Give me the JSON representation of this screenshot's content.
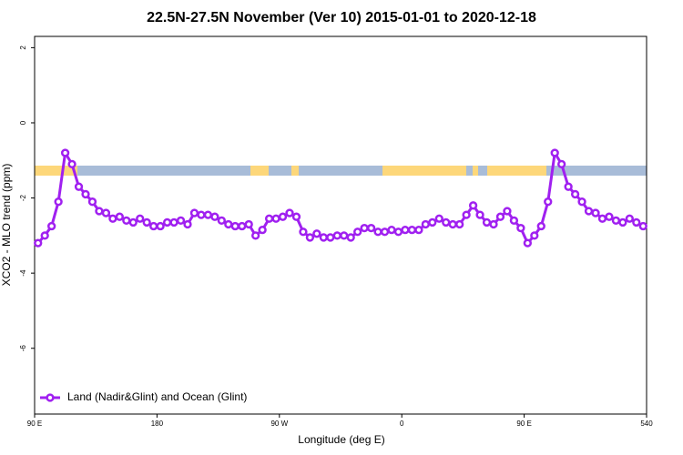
{
  "chart_data": {
    "type": "line",
    "title": "22.5N-27.5N November (Ver 10)   2015-01-01 to 2020-12-18",
    "xlabel": "Longitude (deg E)",
    "ylabel": "XCO2 - MLO trend (ppm)",
    "x": [
      92.5,
      97.5,
      102.5,
      107.5,
      112.5,
      117.5,
      122.5,
      127.5,
      132.5,
      137.5,
      142.5,
      147.5,
      152.5,
      157.5,
      162.5,
      167.5,
      172.5,
      177.5,
      182.5,
      187.5,
      192.5,
      197.5,
      202.5,
      207.5,
      212.5,
      217.5,
      222.5,
      227.5,
      232.5,
      237.5,
      242.5,
      247.5,
      252.5,
      257.5,
      262.5,
      267.5,
      272.5,
      277.5,
      282.5,
      287.5,
      292.5,
      297.5,
      302.5,
      307.5,
      312.5,
      317.5,
      322.5,
      327.5,
      332.5,
      337.5,
      342.5,
      347.5,
      352.5,
      357.5,
      362.5,
      367.5,
      372.5,
      377.5,
      382.5,
      387.5,
      392.5,
      397.5,
      402.5,
      407.5,
      412.5,
      417.5,
      422.5,
      427.5,
      432.5,
      437.5,
      442.5,
      447.5,
      452.5,
      457.5,
      462.5,
      467.5,
      472.5,
      477.5,
      482.5,
      487.5,
      492.5,
      497.5,
      502.5,
      507.5,
      512.5,
      517.5,
      522.5,
      527.5,
      532.5,
      537.5
    ],
    "series": [
      {
        "name": "Land (Nadir&Glint) and Ocean (Glint)",
        "color": "#a020f0",
        "values": [
          -3.2,
          -3.0,
          -2.75,
          -2.1,
          -0.8,
          -1.1,
          -1.7,
          -1.9,
          -2.1,
          -2.35,
          -2.4,
          -2.55,
          -2.5,
          -2.6,
          -2.65,
          -2.55,
          -2.65,
          -2.75,
          -2.75,
          -2.65,
          -2.65,
          -2.6,
          -2.7,
          -2.4,
          -2.45,
          -2.45,
          -2.5,
          -2.6,
          -2.7,
          -2.75,
          -2.75,
          -2.7,
          -3.0,
          -2.85,
          -2.55,
          -2.55,
          -2.5,
          -2.4,
          -2.5,
          -2.9,
          -3.05,
          -2.95,
          -3.05,
          -3.05,
          -3.0,
          -3.0,
          -3.05,
          -2.9,
          -2.8,
          -2.8,
          -2.9,
          -2.9,
          -2.85,
          -2.9,
          -2.85,
          -2.85,
          -2.85,
          -2.7,
          -2.65,
          -2.55,
          -2.65,
          -2.7,
          -2.7,
          -2.45,
          -2.2,
          -2.45,
          -2.65,
          -2.7,
          -2.5,
          -2.35,
          -2.6,
          -2.8,
          -3.2,
          -3.0,
          -2.75,
          -2.1,
          -0.8,
          -1.1,
          -1.7,
          -1.9,
          -2.1,
          -2.35,
          -2.4,
          -2.55,
          -2.5,
          -2.6,
          -2.65,
          -2.55,
          -2.65,
          -2.75
        ]
      }
    ],
    "xlim": [
      90,
      540
    ],
    "xticks": [
      {
        "value": 90,
        "label": "90 E"
      },
      180,
      {
        "value": 270,
        "label": "90 W"
      },
      {
        "value": 360,
        "label": "0"
      },
      {
        "value": 450,
        "label": "90 E"
      },
      540
    ],
    "ylim": [
      -7.75,
      2.3
    ],
    "yticks": [
      -6,
      -4,
      -2,
      0,
      2
    ],
    "legend": "bottom-left"
  }
}
